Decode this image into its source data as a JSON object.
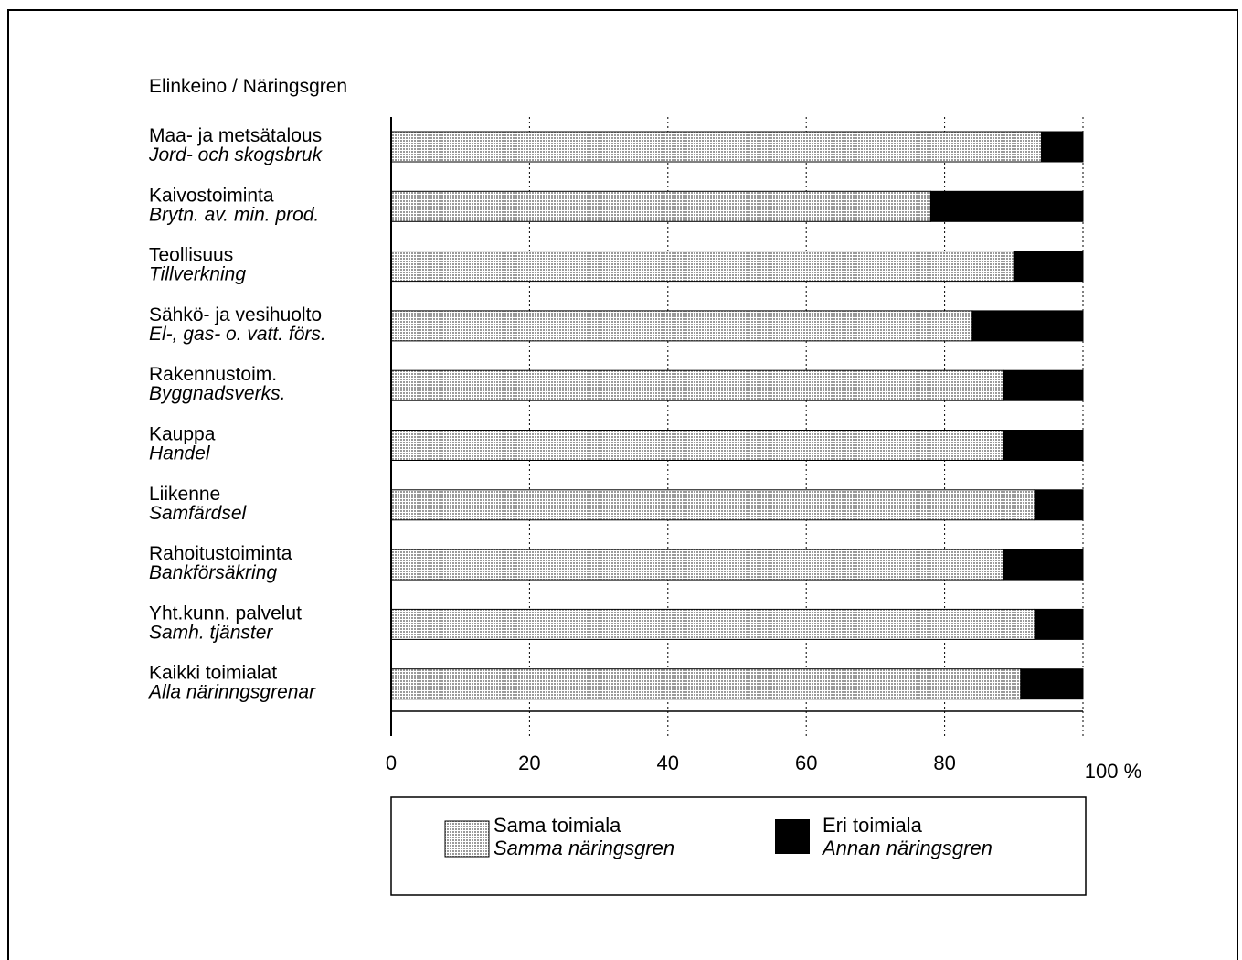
{
  "chart_data": {
    "type": "bar",
    "orientation": "horizontal",
    "stacked": true,
    "title": "Elinkeino / Näringsgren",
    "categories": [
      {
        "fi": "Maa- ja metsätalous",
        "sv": "Jord- och skogsbruk"
      },
      {
        "fi": "Kaivostoiminta",
        "sv": "Brytn. av. min. prod."
      },
      {
        "fi": "Teollisuus",
        "sv": "Tillverkning"
      },
      {
        "fi": "Sähkö- ja vesihuolto",
        "sv": "El-, gas- o. vatt. förs."
      },
      {
        "fi": "Rakennustoim.",
        "sv": "Byggnadsverks."
      },
      {
        "fi": "Kauppa",
        "sv": "Handel"
      },
      {
        "fi": "Liikenne",
        "sv": "Samfärdsel"
      },
      {
        "fi": "Rahoitustoiminta",
        "sv": "Bankförsäkring"
      },
      {
        "fi": "Yht.kunn. palvelut",
        "sv": "Samh. tjänster"
      },
      {
        "fi": "Kaikki toimialat",
        "sv": "Alla närinngsgrenar"
      }
    ],
    "series": [
      {
        "name_fi": "Sama toimiala",
        "name_sv": "Samma näringsgren",
        "color": "#c8c8c8",
        "values": [
          94,
          78,
          90,
          84,
          88.5,
          88.5,
          93,
          88.5,
          93,
          91
        ]
      },
      {
        "name_fi": "Eri toimiala",
        "name_sv": "Annan näringsgren",
        "color": "#000000",
        "values": [
          6,
          22,
          10,
          16,
          11.5,
          11.5,
          7,
          11.5,
          7,
          9
        ]
      }
    ],
    "x_ticks": [
      "0",
      "20",
      "40",
      "60",
      "80",
      "100 %"
    ],
    "xlim": [
      0,
      100
    ],
    "grid": "vertical dotted",
    "legend_position": "bottom"
  }
}
